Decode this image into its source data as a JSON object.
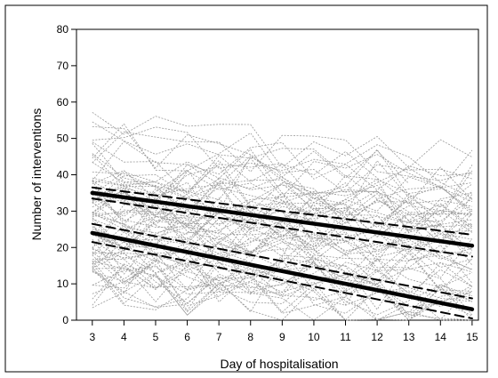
{
  "chart_data": {
    "type": "line",
    "title": "",
    "xlabel": "Day of hospitalisation",
    "ylabel": "Number of interventions",
    "xlim": [
      2.5,
      15.2
    ],
    "ylim": [
      0,
      80
    ],
    "x_ticks": [
      3,
      4,
      5,
      6,
      7,
      8,
      9,
      10,
      11,
      12,
      13,
      14,
      15
    ],
    "y_ticks": [
      0,
      10,
      20,
      30,
      40,
      50,
      60,
      70,
      80
    ],
    "grid": false,
    "legend": "none",
    "background_series": {
      "description_note": "",
      "count": 80,
      "style": "dotted",
      "color": "#9a9a9a"
    },
    "series": [
      {
        "x": [
          3,
          15
        ],
        "values": [
          35,
          20.5
        ],
        "style": "solid-bold",
        "color": "#000000"
      },
      {
        "x": [
          3,
          15
        ],
        "values": [
          36.5,
          23.5
        ],
        "style": "dashed",
        "color": "#000000"
      },
      {
        "x": [
          3,
          15
        ],
        "values": [
          33.5,
          17.5
        ],
        "style": "dashed",
        "color": "#000000"
      },
      {
        "x": [
          3,
          15
        ],
        "values": [
          24,
          3
        ],
        "style": "solid-bold",
        "color": "#000000"
      },
      {
        "x": [
          3,
          15
        ],
        "values": [
          26.5,
          6
        ],
        "style": "dashed",
        "color": "#000000"
      },
      {
        "x": [
          3,
          15
        ],
        "values": [
          21.5,
          0.5
        ],
        "style": "dashed",
        "color": "#000000"
      }
    ]
  }
}
